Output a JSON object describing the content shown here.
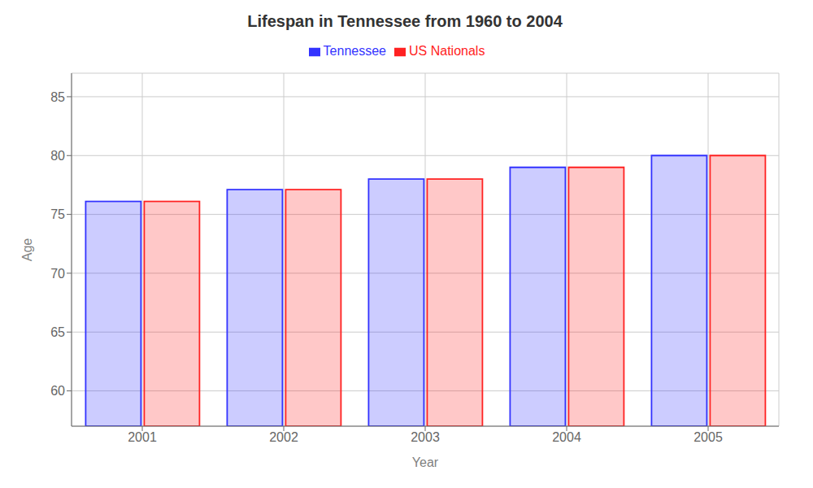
{
  "chart_data": {
    "type": "bar",
    "title": "Lifespan in Tennessee from 1960 to 2004",
    "xlabel": "Year",
    "ylabel": "Age",
    "categories": [
      "2001",
      "2002",
      "2003",
      "2004",
      "2005"
    ],
    "series": [
      {
        "name": "Tennessee",
        "color": "#3333ff",
        "values": [
          76.1,
          77.1,
          78.0,
          79.0,
          80.0
        ]
      },
      {
        "name": "US Nationals",
        "color": "#ff2222",
        "values": [
          76.1,
          77.1,
          78.0,
          79.0,
          80.0
        ]
      }
    ],
    "ylim": [
      57,
      87
    ],
    "yticks": [
      60,
      65,
      70,
      75,
      80,
      85
    ],
    "grid": true,
    "legend": "top"
  }
}
